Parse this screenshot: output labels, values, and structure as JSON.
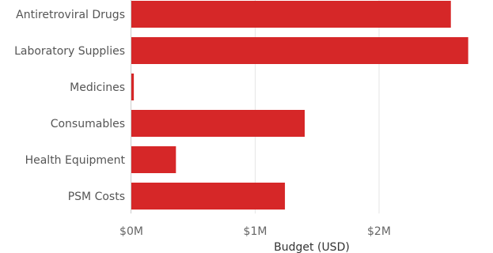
{
  "chart_data": {
    "type": "bar",
    "orientation": "horizontal",
    "categories": [
      "Antiretroviral Drugs",
      "Laboratory Supplies",
      "Medicines",
      "Consumables",
      "Health Equipment",
      "PSM Costs"
    ],
    "series": [
      {
        "values": [
          2580000,
          2720000,
          20000,
          1400000,
          360000,
          1240000
        ]
      }
    ],
    "xlabel": "Budget (USD)",
    "ylabel": "",
    "xlim": [
      0,
      2850000
    ],
    "x_ticks": [
      {
        "value": 0,
        "label": "$0M"
      },
      {
        "value": 1000000,
        "label": "$1M"
      },
      {
        "value": 2000000,
        "label": "$2M"
      }
    ],
    "grid": true,
    "bar_color": "#d62728"
  }
}
